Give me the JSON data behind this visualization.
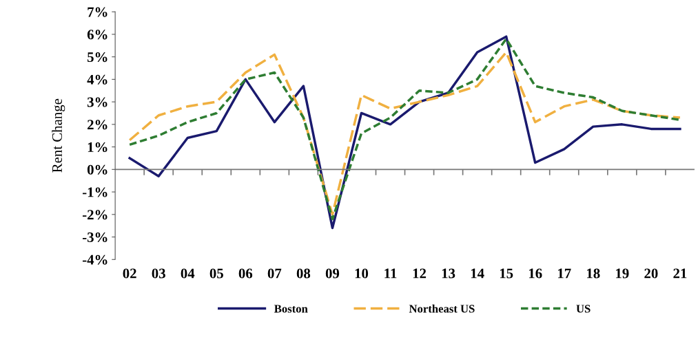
{
  "chart_data": {
    "type": "line",
    "ylabel": "Rent Change",
    "categories": [
      "02",
      "03",
      "04",
      "05",
      "06",
      "07",
      "08",
      "09",
      "10",
      "11",
      "12",
      "13",
      "14",
      "15",
      "16",
      "17",
      "18",
      "19",
      "20",
      "21"
    ],
    "series": [
      {
        "name": "Boston",
        "color": "#1a1a6e",
        "line_style": "solid",
        "values": [
          0.5,
          -0.3,
          1.4,
          1.7,
          4.0,
          2.1,
          3.7,
          -2.6,
          2.5,
          2.0,
          3.0,
          3.4,
          5.2,
          5.9,
          0.3,
          0.9,
          1.9,
          2.0,
          1.8,
          1.8
        ]
      },
      {
        "name": "Northeast US",
        "color": "#f0b040",
        "line_style": "longdash",
        "values": [
          1.3,
          2.4,
          2.8,
          3.0,
          4.3,
          5.1,
          2.3,
          -2.0,
          3.3,
          2.7,
          3.0,
          3.3,
          3.7,
          5.2,
          2.1,
          2.8,
          3.1,
          2.6,
          2.4,
          2.3
        ]
      },
      {
        "name": "US",
        "color": "#2e7d32",
        "line_style": "dashed",
        "values": [
          1.1,
          1.5,
          2.1,
          2.5,
          4.0,
          4.3,
          2.3,
          -2.2,
          1.6,
          2.3,
          3.5,
          3.4,
          4.0,
          5.8,
          3.7,
          3.4,
          3.2,
          2.6,
          2.4,
          2.2
        ]
      }
    ],
    "ylim": [
      -4,
      7
    ],
    "yticks": [
      {
        "value": -4,
        "label": "-4%"
      },
      {
        "value": -3,
        "label": "-3%"
      },
      {
        "value": -2,
        "label": "-2%"
      },
      {
        "value": -1,
        "label": "-1%"
      },
      {
        "value": 0,
        "label": "0%"
      },
      {
        "value": 1,
        "label": "1%"
      },
      {
        "value": 2,
        "label": "2%"
      },
      {
        "value": 3,
        "label": "3%"
      },
      {
        "value": 4,
        "label": "4%"
      },
      {
        "value": 5,
        "label": "5%"
      },
      {
        "value": 6,
        "label": "6%"
      },
      {
        "value": 7,
        "label": "7%"
      }
    ],
    "ref_lines": [
      {
        "axis": "y",
        "value": 0,
        "color": "#777777"
      }
    ],
    "grid": false,
    "legend": "bottom",
    "marker": "none"
  }
}
